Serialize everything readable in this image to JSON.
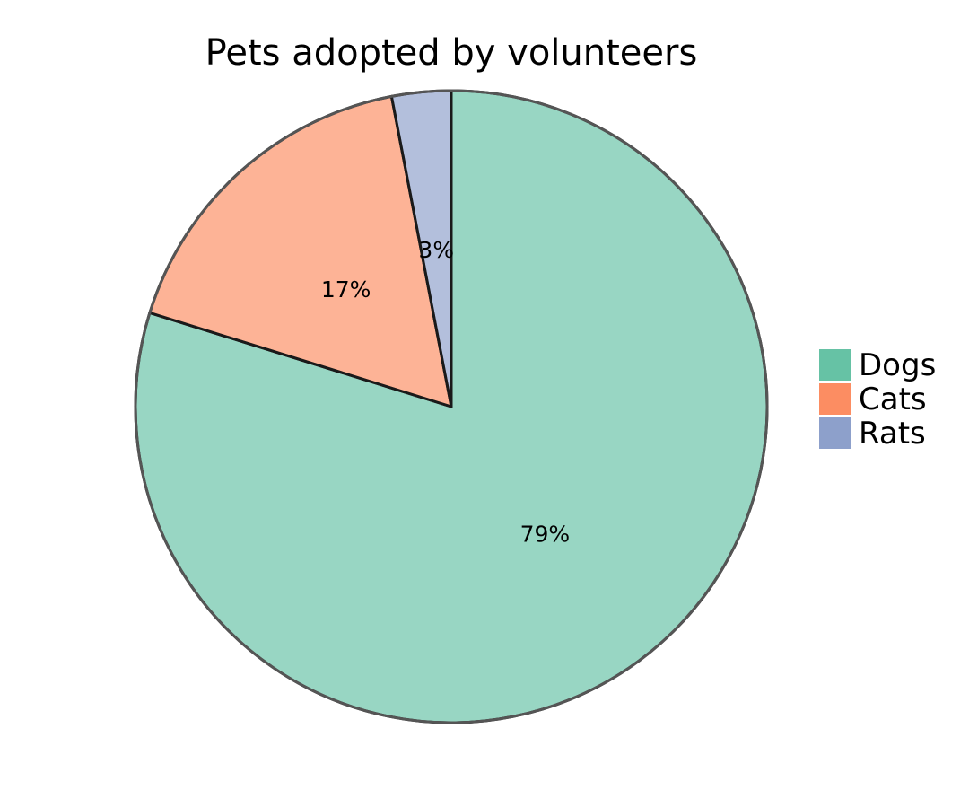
{
  "chart_data": {
    "type": "pie",
    "title": "Pets adopted by volunteers",
    "categories": [
      "Dogs",
      "Cats",
      "Rats"
    ],
    "values": [
      79,
      17,
      3
    ],
    "data_labels": [
      "79%",
      "17%",
      "3%"
    ],
    "colors": [
      "#66c2a5",
      "#fc8d62",
      "#8da0cb"
    ],
    "slice_opacity": 0.67,
    "start_angle": "12 o'clock",
    "direction": "clockwise",
    "legend": {
      "placement": "right",
      "entries": [
        "Dogs",
        "Cats",
        "Rats"
      ]
    }
  }
}
